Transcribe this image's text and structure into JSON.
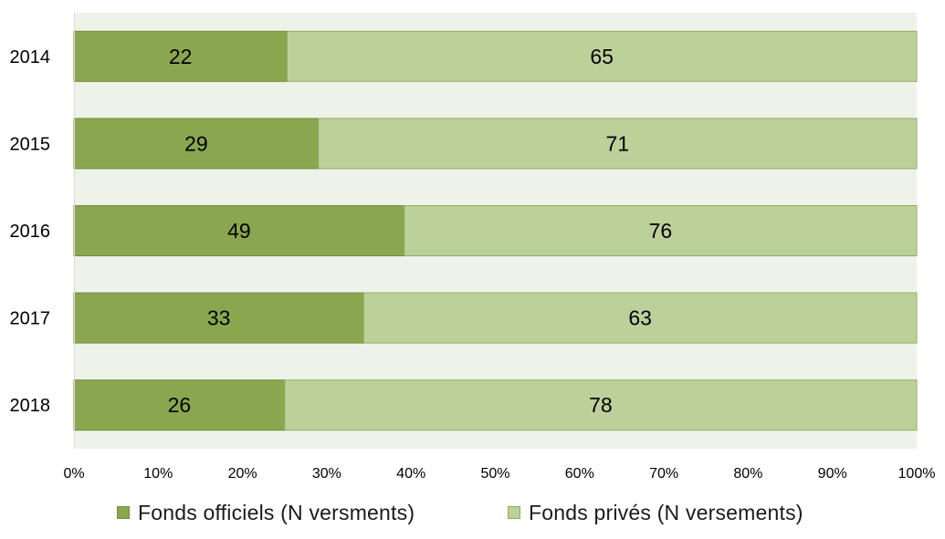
{
  "chart_data": {
    "type": "bar",
    "orientation": "horizontal",
    "stacked": "percent",
    "categories": [
      "2014",
      "2015",
      "2016",
      "2017",
      "2018"
    ],
    "series": [
      {
        "name": "Fonds officiels (N versments)",
        "values": [
          22,
          29,
          49,
          33,
          26
        ],
        "color": "#8aa74f"
      },
      {
        "name": "Fonds privés (N versements)",
        "values": [
          65,
          71,
          76,
          63,
          78
        ],
        "color": "#bcd19a"
      }
    ],
    "x_ticks": [
      "0%",
      "10%",
      "20%",
      "30%",
      "40%",
      "50%",
      "60%",
      "70%",
      "80%",
      "90%",
      "100%"
    ],
    "xlim": [
      0,
      100
    ],
    "plot_background": "#eff2e8",
    "legend_position": "bottom",
    "title": "",
    "xlabel": "",
    "ylabel": ""
  }
}
